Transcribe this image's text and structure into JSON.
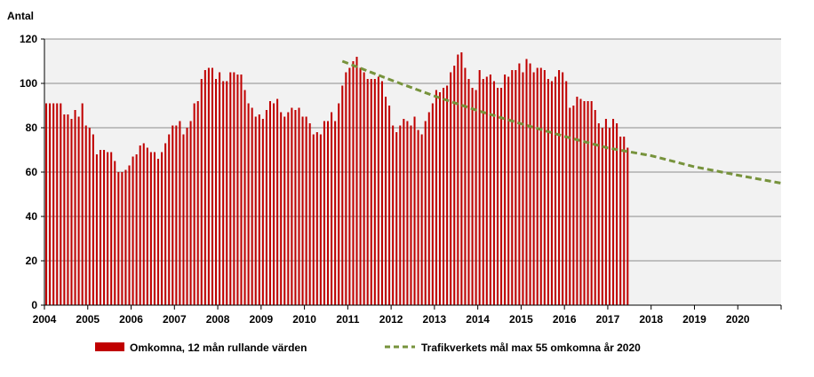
{
  "chart_data": {
    "type": "bar",
    "ylabel": "Antal",
    "ylim": [
      0,
      120
    ],
    "yticks": [
      0,
      20,
      40,
      60,
      80,
      100,
      120
    ],
    "xlim": [
      2004,
      2021
    ],
    "xticks": [
      "2004",
      "2005",
      "2006",
      "2007",
      "2008",
      "2009",
      "2010",
      "2011",
      "2012",
      "2013",
      "2014",
      "2015",
      "2016",
      "2017",
      "2018",
      "2019",
      "2020"
    ],
    "grid": true,
    "legend_placement": "bottom",
    "series": [
      {
        "name": "Omkomna, 12 mån rullande värden",
        "type": "bar",
        "color": "#c00000",
        "start_year": 2004,
        "step_months": 1,
        "values": [
          91,
          91,
          91,
          91,
          91,
          86,
          86,
          84,
          88,
          85,
          91,
          81,
          80,
          77,
          68,
          70,
          70,
          69,
          69,
          65,
          60,
          60,
          61,
          63,
          67,
          68,
          72,
          73,
          71,
          69,
          69,
          66,
          69,
          73,
          77,
          81,
          81,
          83,
          77,
          80,
          83,
          91,
          92,
          102,
          106,
          107,
          107,
          102,
          105,
          101,
          101,
          105,
          105,
          104,
          104,
          97,
          91,
          89,
          85,
          86,
          84,
          88,
          92,
          91,
          93,
          87,
          85,
          87,
          89,
          88,
          89,
          85,
          85,
          82,
          77,
          78,
          77,
          83,
          83,
          87,
          83,
          91,
          99,
          105,
          107,
          110,
          112,
          107,
          105,
          102,
          102,
          102,
          103,
          101,
          94,
          90,
          81,
          78,
          81,
          84,
          83,
          81,
          85,
          79,
          77,
          83,
          87,
          91,
          97,
          96,
          98,
          99,
          105,
          108,
          113,
          114,
          107,
          102,
          98,
          97,
          106,
          102,
          103,
          104,
          101,
          98,
          98,
          104,
          103,
          106,
          106,
          109,
          105,
          111,
          109,
          105,
          107,
          107,
          106,
          102,
          101,
          103,
          106,
          105,
          101,
          89,
          90,
          94,
          93,
          92,
          92,
          92,
          88,
          82,
          80,
          84,
          80,
          84,
          82,
          76,
          76,
          71
        ]
      },
      {
        "name": "Trafikverkets mål max 55 omkomna år 2020",
        "type": "line",
        "style": "dashed",
        "color": "#77933c",
        "x": [
          2010.875,
          2012,
          2013,
          2014,
          2015,
          2016,
          2017,
          2018,
          2019,
          2020,
          2021
        ],
        "values": [
          110,
          101.5,
          94.3,
          87.7,
          81.8,
          76.1,
          70.9,
          67.4,
          62.4,
          58.6,
          55
        ]
      }
    ]
  }
}
